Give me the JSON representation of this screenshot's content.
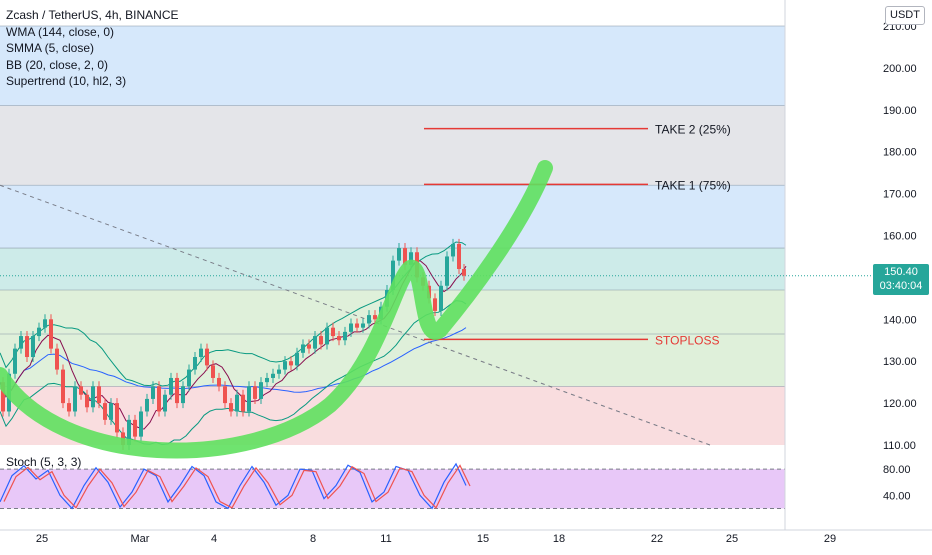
{
  "legend": {
    "symbol_line": "Zcash / TetherUS, 4h, BINANCE",
    "indicators": [
      "WMA (144, close, 0)",
      "SMMA (5, close)",
      "BB (20, close, 2, 0)",
      "Supertrend (10, hl2, 3)"
    ]
  },
  "stoch_label": "Stoch (5, 3, 3)",
  "currency_badge": "USDT",
  "last_price": {
    "value": "150.40",
    "countdown": "03:40:04",
    "price": 150.4
  },
  "colors": {
    "zone_blue": "#d6e8fb",
    "zone_gray": "#e4e5e9",
    "zone_teal": "#cdebe9",
    "zone_green": "#dff0da",
    "zone_red": "#f9dddf",
    "stoch_band": "#e8c8f8",
    "bull_candle": "#26a69a",
    "bear_candle": "#ef5350",
    "target_line": "#e53935",
    "arrow": "#5fe05f",
    "wma": "#2962ff",
    "smma": "#880e4f",
    "bb": "#089981",
    "stoch_k": "#2962ff",
    "stoch_d": "#ef5350"
  },
  "chart_data": {
    "type": "candlestick",
    "price_axis": {
      "min": 110,
      "max": 210,
      "ticks": [
        110,
        120,
        130,
        140,
        150,
        160,
        170,
        180,
        190,
        200,
        210
      ]
    },
    "stoch_axis": {
      "ticks": [
        40,
        80
      ],
      "band": [
        20,
        80
      ]
    },
    "time_axis": {
      "ticks": [
        "25",
        "Mar",
        "4",
        "8",
        "11",
        "15",
        "18",
        "22",
        "25",
        "29"
      ]
    },
    "zones": [
      {
        "from": 191,
        "to": 210,
        "color": "blue"
      },
      {
        "from": 172,
        "to": 191,
        "color": "gray"
      },
      {
        "from": 157,
        "to": 172,
        "color": "blue"
      },
      {
        "from": 147,
        "to": 157,
        "color": "teal"
      },
      {
        "from": 136.5,
        "to": 147,
        "color": "green"
      },
      {
        "from": 124,
        "to": 136.5,
        "color": "green"
      },
      {
        "from": 110,
        "to": 124,
        "color": "red"
      }
    ],
    "levels": [
      {
        "label": "TAKE 2 (25%)",
        "price": 185.5
      },
      {
        "label": "TAKE 1 (75%)",
        "price": 172.2
      },
      {
        "label": "STOPLOSS",
        "price": 135.2
      }
    ],
    "price_path": [
      [
        0,
        125
      ],
      [
        6,
        118
      ],
      [
        12,
        127
      ],
      [
        18,
        133
      ],
      [
        24,
        136
      ],
      [
        30,
        131
      ],
      [
        36,
        136
      ],
      [
        42,
        138
      ],
      [
        48,
        140
      ],
      [
        54,
        133
      ],
      [
        60,
        128
      ],
      [
        66,
        120
      ],
      [
        72,
        118
      ],
      [
        78,
        124
      ],
      [
        84,
        122
      ],
      [
        90,
        119
      ],
      [
        96,
        124
      ],
      [
        102,
        120
      ],
      [
        108,
        116
      ],
      [
        114,
        120
      ],
      [
        120,
        113
      ],
      [
        126,
        110
      ],
      [
        132,
        116
      ],
      [
        138,
        112
      ],
      [
        144,
        118
      ],
      [
        150,
        121
      ],
      [
        156,
        124
      ],
      [
        162,
        118
      ],
      [
        168,
        122
      ],
      [
        174,
        126
      ],
      [
        180,
        120
      ],
      [
        186,
        124
      ],
      [
        192,
        128
      ],
      [
        198,
        131
      ],
      [
        204,
        133
      ],
      [
        210,
        129
      ],
      [
        216,
        126
      ],
      [
        222,
        124
      ],
      [
        228,
        120
      ],
      [
        234,
        118
      ],
      [
        240,
        122
      ],
      [
        246,
        118
      ],
      [
        252,
        124
      ],
      [
        258,
        121
      ],
      [
        264,
        125
      ],
      [
        270,
        126
      ],
      [
        276,
        127
      ],
      [
        282,
        128
      ],
      [
        288,
        130
      ],
      [
        294,
        129
      ],
      [
        300,
        132
      ],
      [
        306,
        134
      ],
      [
        312,
        133
      ],
      [
        318,
        136
      ],
      [
        324,
        134
      ],
      [
        330,
        138
      ],
      [
        336,
        136
      ],
      [
        342,
        135
      ],
      [
        348,
        137
      ],
      [
        354,
        139
      ],
      [
        360,
        138
      ],
      [
        366,
        139
      ],
      [
        372,
        141
      ],
      [
        378,
        140
      ],
      [
        384,
        143
      ],
      [
        390,
        147
      ],
      [
        396,
        154
      ],
      [
        402,
        157
      ],
      [
        408,
        153
      ],
      [
        414,
        156
      ],
      [
        420,
        150
      ],
      [
        426,
        148
      ],
      [
        432,
        145
      ],
      [
        438,
        142
      ],
      [
        444,
        148
      ],
      [
        450,
        155
      ],
      [
        456,
        158
      ],
      [
        462,
        152
      ],
      [
        466,
        150.4
      ]
    ],
    "stoch_path": [
      [
        0,
        30
      ],
      [
        12,
        70
      ],
      [
        24,
        85
      ],
      [
        36,
        65
      ],
      [
        48,
        78
      ],
      [
        60,
        40
      ],
      [
        72,
        20
      ],
      [
        84,
        55
      ],
      [
        96,
        82
      ],
      [
        108,
        60
      ],
      [
        120,
        22
      ],
      [
        132,
        45
      ],
      [
        144,
        80
      ],
      [
        156,
        70
      ],
      [
        168,
        30
      ],
      [
        180,
        55
      ],
      [
        192,
        84
      ],
      [
        204,
        70
      ],
      [
        216,
        30
      ],
      [
        228,
        20
      ],
      [
        240,
        55
      ],
      [
        252,
        84
      ],
      [
        264,
        60
      ],
      [
        276,
        25
      ],
      [
        288,
        40
      ],
      [
        300,
        80
      ],
      [
        312,
        78
      ],
      [
        324,
        35
      ],
      [
        336,
        55
      ],
      [
        348,
        86
      ],
      [
        360,
        75
      ],
      [
        372,
        30
      ],
      [
        384,
        45
      ],
      [
        396,
        84
      ],
      [
        408,
        78
      ],
      [
        420,
        40
      ],
      [
        432,
        20
      ],
      [
        444,
        60
      ],
      [
        456,
        88
      ],
      [
        466,
        55
      ]
    ]
  }
}
